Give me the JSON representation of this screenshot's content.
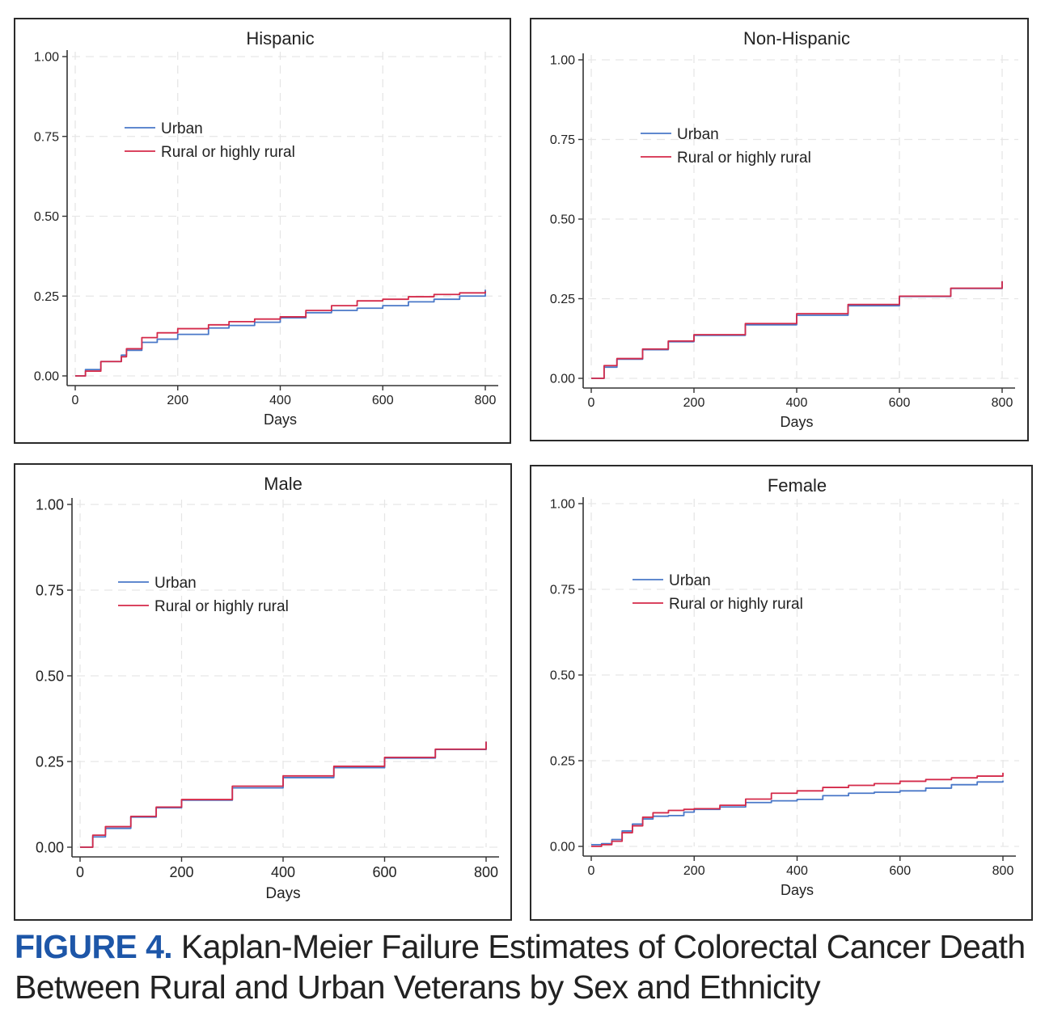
{
  "caption": {
    "label": "FIGURE 4.",
    "text": " Kaplan-Meier Failure Estimates of Colorectal Cancer Death Between Rural and Urban Veterans by Sex and Ethnicity"
  },
  "colors": {
    "urban": "#4a78c8",
    "rural": "#d42a4a",
    "grid": "#e6e6e6",
    "axis": "#333333"
  },
  "chart_data": [
    {
      "id": "hispanic",
      "type": "line",
      "title": "Hispanic",
      "xlabel": "Days",
      "ylabel": "",
      "xlim": [
        0,
        800
      ],
      "ylim": [
        0,
        1
      ],
      "xticks": [
        "0",
        "200",
        "400",
        "600",
        "800"
      ],
      "yticks": [
        "0.00",
        "0.25",
        "0.50",
        "0.75",
        "1.00"
      ],
      "legend": [
        "Urban",
        "Rural or highly rural"
      ],
      "series": [
        {
          "name": "Urban",
          "x": [
            0,
            20,
            50,
            90,
            100,
            130,
            160,
            200,
            260,
            300,
            350,
            400,
            450,
            500,
            550,
            600,
            650,
            700,
            750,
            800
          ],
          "y": [
            0,
            0.02,
            0.045,
            0.065,
            0.08,
            0.105,
            0.115,
            0.13,
            0.15,
            0.158,
            0.168,
            0.182,
            0.198,
            0.205,
            0.212,
            0.22,
            0.232,
            0.24,
            0.25,
            0.27
          ]
        },
        {
          "name": "Rural or highly rural",
          "x": [
            0,
            20,
            50,
            90,
            100,
            130,
            160,
            200,
            260,
            300,
            350,
            400,
            450,
            500,
            550,
            600,
            650,
            700,
            750,
            800
          ],
          "y": [
            0,
            0.015,
            0.045,
            0.06,
            0.085,
            0.12,
            0.135,
            0.148,
            0.16,
            0.17,
            0.178,
            0.185,
            0.205,
            0.22,
            0.235,
            0.24,
            0.248,
            0.255,
            0.26,
            0.265
          ]
        }
      ]
    },
    {
      "id": "non-hispanic",
      "type": "line",
      "title": "Non-Hispanic",
      "xlabel": "Days",
      "ylabel": "",
      "xlim": [
        0,
        800
      ],
      "ylim": [
        0,
        1
      ],
      "xticks": [
        "0",
        "200",
        "400",
        "600",
        "800"
      ],
      "yticks": [
        "0.00",
        "0.25",
        "0.50",
        "0.75",
        "1.00"
      ],
      "legend": [
        "Urban",
        "Rural or highly rural"
      ],
      "series": [
        {
          "name": "Urban",
          "x": [
            0,
            25,
            50,
            100,
            150,
            200,
            300,
            400,
            500,
            600,
            700,
            800
          ],
          "y": [
            0,
            0.035,
            0.06,
            0.09,
            0.115,
            0.135,
            0.168,
            0.198,
            0.228,
            0.257,
            0.282,
            0.305
          ]
        },
        {
          "name": "Rural or highly rural",
          "x": [
            0,
            25,
            50,
            100,
            150,
            200,
            300,
            400,
            500,
            600,
            700,
            800
          ],
          "y": [
            0,
            0.04,
            0.062,
            0.092,
            0.117,
            0.137,
            0.172,
            0.203,
            0.232,
            0.258,
            0.283,
            0.305
          ]
        }
      ]
    },
    {
      "id": "male",
      "type": "line",
      "title": "Male",
      "xlabel": "Days",
      "ylabel": "",
      "xlim": [
        0,
        800
      ],
      "ylim": [
        0,
        1
      ],
      "xticks": [
        "0",
        "200",
        "400",
        "600",
        "800"
      ],
      "yticks": [
        "0.00",
        "0.25",
        "0.50",
        "0.75",
        "1.00"
      ],
      "legend": [
        "Urban",
        "Rural or highly rural"
      ],
      "series": [
        {
          "name": "Urban",
          "x": [
            0,
            25,
            50,
            100,
            150,
            200,
            300,
            400,
            500,
            600,
            700,
            800
          ],
          "y": [
            0,
            0.03,
            0.055,
            0.088,
            0.115,
            0.137,
            0.173,
            0.203,
            0.232,
            0.26,
            0.285,
            0.308
          ]
        },
        {
          "name": "Rural or highly rural",
          "x": [
            0,
            25,
            50,
            100,
            150,
            200,
            300,
            400,
            500,
            600,
            700,
            800
          ],
          "y": [
            0,
            0.035,
            0.06,
            0.09,
            0.117,
            0.139,
            0.178,
            0.208,
            0.236,
            0.262,
            0.286,
            0.308
          ]
        }
      ]
    },
    {
      "id": "female",
      "type": "line",
      "title": "Female",
      "xlabel": "Days",
      "ylabel": "",
      "xlim": [
        0,
        800
      ],
      "ylim": [
        0,
        1
      ],
      "xticks": [
        "0",
        "200",
        "400",
        "600",
        "800"
      ],
      "yticks": [
        "0.00",
        "0.25",
        "0.50",
        "0.75",
        "1.00"
      ],
      "legend": [
        "Urban",
        "Rural or highly rural"
      ],
      "series": [
        {
          "name": "Urban",
          "x": [
            0,
            20,
            40,
            60,
            80,
            100,
            120,
            150,
            180,
            200,
            250,
            300,
            350,
            400,
            450,
            500,
            550,
            600,
            650,
            700,
            750,
            800
          ],
          "y": [
            0.005,
            0.008,
            0.02,
            0.045,
            0.065,
            0.08,
            0.088,
            0.09,
            0.1,
            0.108,
            0.115,
            0.128,
            0.133,
            0.137,
            0.148,
            0.155,
            0.158,
            0.162,
            0.17,
            0.18,
            0.188,
            0.192
          ]
        },
        {
          "name": "Rural or highly rural",
          "x": [
            0,
            20,
            40,
            60,
            80,
            100,
            120,
            150,
            180,
            200,
            250,
            300,
            350,
            400,
            450,
            500,
            550,
            600,
            650,
            700,
            750,
            800
          ],
          "y": [
            0,
            0.005,
            0.015,
            0.04,
            0.06,
            0.085,
            0.098,
            0.105,
            0.108,
            0.11,
            0.12,
            0.138,
            0.155,
            0.162,
            0.172,
            0.178,
            0.183,
            0.19,
            0.195,
            0.2,
            0.205,
            0.215
          ]
        }
      ]
    }
  ]
}
